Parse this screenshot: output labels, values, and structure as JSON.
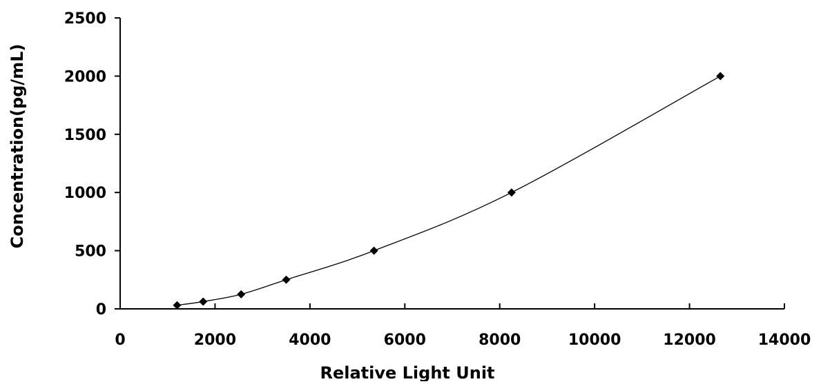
{
  "chart_data": {
    "type": "scatter",
    "title": "",
    "xlabel": "Relative Light Unit",
    "ylabel": "Concentration(pg/mL)",
    "xlim": [
      0,
      14000
    ],
    "ylim": [
      0,
      2500
    ],
    "xticks": [
      "0",
      "2000",
      "4000",
      "6000",
      "8000",
      "10000",
      "12000",
      "14000"
    ],
    "yticks": [
      "0",
      "500",
      "1000",
      "1500",
      "2000",
      "2500"
    ],
    "grid": false,
    "legend": false,
    "marker": "diamond",
    "trendline": "smooth curve",
    "series": [
      {
        "x": [
          1200,
          1750,
          2550,
          3500,
          5350,
          8250,
          12650
        ],
        "y": [
          31.25,
          62.5,
          125,
          250,
          500,
          1000,
          2000
        ]
      }
    ],
    "colors": {
      "axis": "#000000",
      "marker": "#000000",
      "line": "#000000"
    }
  }
}
